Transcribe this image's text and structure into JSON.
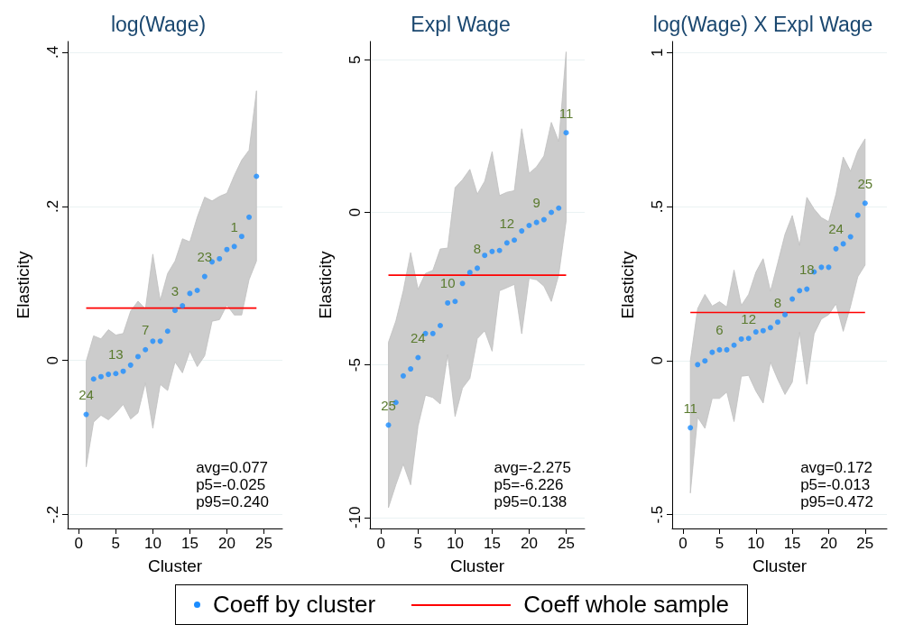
{
  "chart_data": [
    {
      "type": "scatter",
      "title": "log(Wage)",
      "xlabel": "Cluster",
      "ylabel": "Elasticity",
      "xlim": [
        -1.5,
        27.5
      ],
      "ylim": [
        -0.218,
        0.414
      ],
      "xticks": [
        0,
        5,
        10,
        15,
        20,
        25
      ],
      "yticks": [
        {
          "value": -0.2,
          "label": "-.2"
        },
        {
          "value": 0,
          "label": "0"
        },
        {
          "value": 0.2,
          "label": ".2"
        },
        {
          "value": 0.4,
          "label": ".4"
        }
      ],
      "grid": "y",
      "legend": "bottom",
      "series": [
        {
          "name": "Coeff by cluster",
          "marker": "circle",
          "color": "#1a8cff",
          "x": [
            1,
            2,
            3,
            4,
            5,
            6,
            7,
            8,
            9,
            10,
            11,
            12,
            13,
            14,
            15,
            16,
            17,
            18,
            19,
            20,
            21,
            22,
            23,
            24
          ],
          "values": [
            -0.07,
            -0.024,
            -0.021,
            -0.018,
            -0.017,
            -0.014,
            -0.006,
            0.005,
            0.014,
            0.025,
            0.025,
            0.038,
            0.065,
            0.071,
            0.087,
            0.091,
            0.109,
            0.128,
            0.132,
            0.144,
            0.148,
            0.161,
            0.186,
            0.239
          ],
          "lower": [
            -0.138,
            -0.08,
            -0.071,
            -0.077,
            -0.068,
            -0.057,
            -0.076,
            -0.068,
            -0.029,
            -0.088,
            -0.031,
            -0.039,
            -0.002,
            -0.016,
            0.012,
            -0.008,
            0.006,
            0.051,
            0.053,
            0.072,
            0.059,
            0.059,
            0.105,
            0.129
          ],
          "upper": [
            -0.001,
            0.032,
            0.028,
            0.04,
            0.033,
            0.035,
            0.064,
            0.077,
            0.067,
            0.138,
            0.078,
            0.113,
            0.129,
            0.158,
            0.154,
            0.186,
            0.212,
            0.207,
            0.213,
            0.217,
            0.24,
            0.26,
            0.273,
            0.35
          ]
        },
        {
          "name": "Coeff whole sample",
          "type": "line",
          "marker": "none",
          "color": "#ff0000",
          "x": [
            1,
            24
          ],
          "values": [
            0.068,
            0.068
          ]
        }
      ],
      "annotations": [
        {
          "text": "24",
          "x": 1,
          "y": -0.07
        },
        {
          "text": "13",
          "x": 5,
          "y": -0.017
        },
        {
          "text": "7",
          "x": 9,
          "y": 0.014
        },
        {
          "text": "3",
          "x": 13,
          "y": 0.065
        },
        {
          "text": "23",
          "x": 17,
          "y": 0.109
        },
        {
          "text": "1",
          "x": 21,
          "y": 0.148
        },
        "avg=0.077",
        "p5=-0.025",
        "p95=0.240"
      ]
    },
    {
      "type": "scatter",
      "title": "Expl Wage",
      "xlabel": "Cluster",
      "ylabel": "Elasticity",
      "xlim": [
        -1.5,
        27.5
      ],
      "ylim": [
        -10.36,
        5.6
      ],
      "xticks": [
        0,
        5,
        10,
        15,
        20,
        25
      ],
      "yticks": [
        -10,
        -5,
        0,
        5
      ],
      "grid": "y",
      "series": [
        {
          "marker": "circle",
          "color": "#1a8cff",
          "x": [
            1,
            2,
            3,
            4,
            5,
            6,
            7,
            8,
            9,
            10,
            11,
            12,
            13,
            14,
            15,
            16,
            17,
            18,
            19,
            20,
            21,
            22,
            23,
            24,
            25
          ],
          "values": [
            -6.97,
            -6.23,
            -5.36,
            -5.13,
            -4.76,
            -3.97,
            -3.97,
            -3.71,
            -2.97,
            -2.92,
            -2.33,
            -1.97,
            -1.83,
            -1.41,
            -1.28,
            -1.25,
            -1.0,
            -0.91,
            -0.61,
            -0.43,
            -0.33,
            -0.24,
            0.0,
            0.14,
            2.61
          ],
          "lower": [
            -9.68,
            -8.93,
            -8.25,
            -8.93,
            -7.0,
            -5.99,
            -6.07,
            -6.28,
            -4.66,
            -6.69,
            -5.76,
            -5.44,
            -4.14,
            -3.88,
            -4.55,
            -2.57,
            -2.47,
            -2.36,
            -3.98,
            -2.16,
            -2.21,
            -2.42,
            -2.92,
            -2.05,
            -0.28
          ],
          "upper": [
            -4.26,
            -3.56,
            -2.57,
            -1.32,
            -2.52,
            -2.0,
            -1.9,
            -1.2,
            -1.17,
            0.81,
            1.07,
            1.41,
            0.6,
            1.02,
            1.99,
            0.55,
            0.66,
            0.71,
            2.74,
            1.28,
            1.49,
            1.85,
            2.95,
            2.32,
            5.26
          ]
        },
        {
          "type": "line",
          "marker": "none",
          "color": "#ff0000",
          "x": [
            1,
            25
          ],
          "values": [
            -2.06,
            -2.06
          ]
        }
      ],
      "annotations": [
        {
          "text": "25",
          "x": 1,
          "y": -6.97
        },
        {
          "text": "24",
          "x": 5,
          "y": -4.76
        },
        {
          "text": "10",
          "x": 9,
          "y": -2.97
        },
        {
          "text": "8",
          "x": 13,
          "y": -1.83
        },
        {
          "text": "12",
          "x": 17,
          "y": -1.0
        },
        {
          "text": "9",
          "x": 21,
          "y": -0.33
        },
        {
          "text": "11",
          "x": 25,
          "y": 2.61
        },
        "avg=-2.275",
        "p5=-6.226",
        "p95=0.138"
      ]
    },
    {
      "type": "scatter",
      "title": "log(Wage) X Expl Wage",
      "xlabel": "Cluster",
      "ylabel": "Elasticity",
      "xlim": [
        -1.5,
        28
      ],
      "ylim": [
        -0.545,
        1.036
      ],
      "xticks": [
        0,
        5,
        10,
        15,
        20,
        25
      ],
      "yticks": [
        {
          "value": -0.5,
          "label": "-.5"
        },
        {
          "value": 0,
          "label": "0"
        },
        {
          "value": 0.5,
          "label": ".5"
        },
        {
          "value": 1,
          "label": "1"
        }
      ],
      "grid": "y",
      "series": [
        {
          "marker": "circle",
          "color": "#1a8cff",
          "x": [
            1,
            2,
            3,
            4,
            5,
            6,
            7,
            8,
            9,
            10,
            11,
            12,
            13,
            14,
            15,
            16,
            17,
            18,
            19,
            20,
            21,
            22,
            23,
            24,
            25
          ],
          "values": [
            -0.218,
            -0.013,
            -0.001,
            0.027,
            0.035,
            0.035,
            0.05,
            0.07,
            0.072,
            0.093,
            0.097,
            0.107,
            0.125,
            0.149,
            0.2,
            0.227,
            0.232,
            0.288,
            0.303,
            0.303,
            0.363,
            0.379,
            0.402,
            0.472,
            0.511
          ],
          "lower": [
            -0.43,
            -0.184,
            -0.22,
            -0.123,
            -0.123,
            -0.102,
            -0.198,
            -0.051,
            -0.048,
            -0.099,
            -0.138,
            -0.005,
            -0.061,
            -0.11,
            -0.07,
            0.092,
            -0.077,
            0.087,
            0.135,
            0.149,
            0.184,
            0.095,
            0.176,
            0.272,
            0.31
          ],
          "upper": [
            0.0,
            0.169,
            0.215,
            0.177,
            0.191,
            0.174,
            0.294,
            0.179,
            0.215,
            0.287,
            0.331,
            0.225,
            0.317,
            0.41,
            0.471,
            0.374,
            0.53,
            0.492,
            0.464,
            0.451,
            0.54,
            0.661,
            0.615,
            0.681,
            0.72
          ]
        },
        {
          "type": "line",
          "marker": "none",
          "color": "#ff0000",
          "x": [
            1,
            25
          ],
          "values": [
            0.156,
            0.156
          ]
        }
      ],
      "annotations": [
        {
          "text": "11",
          "x": 1,
          "y": -0.218
        },
        {
          "text": "6",
          "x": 5,
          "y": 0.035
        },
        {
          "text": "12",
          "x": 9,
          "y": 0.072
        },
        {
          "text": "8",
          "x": 13,
          "y": 0.125
        },
        {
          "text": "18",
          "x": 17,
          "y": 0.232
        },
        {
          "text": "24",
          "x": 21,
          "y": 0.363
        },
        {
          "text": "25",
          "x": 25,
          "y": 0.511
        },
        "avg=0.172",
        "p5=-0.013",
        "p95=0.472"
      ]
    }
  ]
}
